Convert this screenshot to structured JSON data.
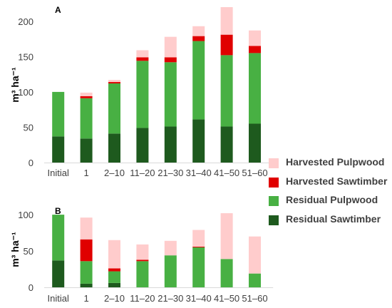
{
  "chart_data": [
    {
      "type": "bar",
      "stacked": true,
      "panel": "A",
      "ylabel": "m³ ha⁻¹",
      "ylim": [
        0,
        220
      ],
      "yticks": [
        0,
        50,
        100,
        150,
        200
      ],
      "grid": false,
      "categories": [
        "Initial",
        "1",
        "2–10",
        "11–20",
        "21–30",
        "31–40",
        "41–50",
        "51–60"
      ],
      "series": [
        {
          "name": "Residual Sawtimber",
          "color": "#1e5a1e",
          "values": [
            37,
            34,
            41,
            49,
            51,
            61,
            51,
            55
          ]
        },
        {
          "name": "Residual Pulpwood",
          "color": "#48b043",
          "values": [
            63,
            57,
            71,
            95,
            91,
            111,
            101,
            100
          ]
        },
        {
          "name": "Harvested Sawtimber",
          "color": "#e00000",
          "values": [
            0,
            3,
            2,
            5,
            7,
            7,
            29,
            10
          ]
        },
        {
          "name": "Harvested Pulpwood",
          "color": "#ffcccc",
          "values": [
            0,
            5,
            3,
            10,
            29,
            14,
            39,
            22
          ]
        }
      ]
    },
    {
      "type": "bar",
      "stacked": true,
      "panel": "B",
      "ylabel": "m³ ha⁻¹",
      "ylim": [
        0,
        105
      ],
      "yticks": [
        0,
        50,
        100
      ],
      "grid": false,
      "categories": [
        "Initial",
        "1",
        "2–10",
        "11–20",
        "21–30",
        "31–40",
        "41–50",
        "51–60"
      ],
      "series": [
        {
          "name": "Residual Sawtimber",
          "color": "#1e5a1e",
          "values": [
            37,
            5,
            6,
            0,
            0,
            0,
            0,
            0
          ]
        },
        {
          "name": "Residual Pulpwood",
          "color": "#48b043",
          "values": [
            63,
            31,
            16,
            36,
            44,
            55,
            39,
            19
          ]
        },
        {
          "name": "Harvested Sawtimber",
          "color": "#e00000",
          "values": [
            0,
            30,
            4,
            2,
            0,
            1,
            0,
            0
          ]
        },
        {
          "name": "Harvested Pulpwood",
          "color": "#ffcccc",
          "values": [
            0,
            30,
            39,
            21,
            20,
            23,
            63,
            51
          ]
        }
      ]
    }
  ],
  "legend": [
    {
      "label": "Harvested Pulpwood",
      "color": "#ffcccc"
    },
    {
      "label": "Harvested Sawtimber",
      "color": "#e00000"
    },
    {
      "label": "Residual Pulpwood",
      "color": "#48b043"
    },
    {
      "label": "Residual Sawtimber",
      "color": "#1e5a1e"
    }
  ]
}
